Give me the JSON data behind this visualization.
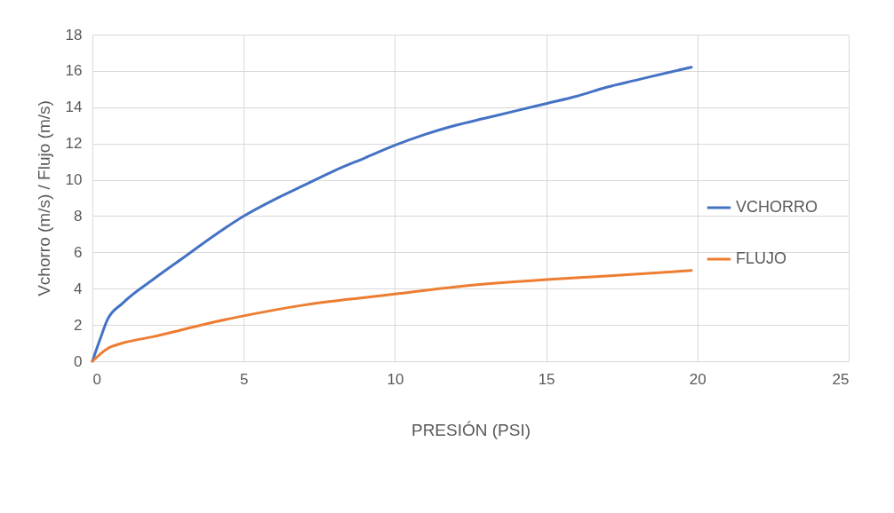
{
  "chart_data": {
    "type": "line",
    "xlabel": "PRESIÓN (PSI)",
    "ylabel": "Vchorro (m/s) / Flujo (m/s)",
    "xlim": [
      0,
      25
    ],
    "xticks": [
      0,
      5,
      10,
      15,
      20,
      25
    ],
    "ylim": [
      0,
      18
    ],
    "yticks": [
      0,
      2,
      4,
      6,
      8,
      10,
      12,
      14,
      16,
      18
    ],
    "grid": true,
    "legend": "right",
    "marker": "none",
    "line_style": "solid",
    "series": [
      {
        "name": "VCHORRO",
        "color": "#4472c4",
        "x": [
          0,
          0.25,
          0.5,
          1,
          2,
          3,
          4,
          5,
          6,
          7,
          8,
          9,
          10,
          11,
          12,
          13,
          14,
          15,
          16,
          17,
          18,
          19,
          19.8
        ],
        "values": [
          0,
          1.2,
          2.3,
          3.2,
          4.5,
          5.7,
          6.9,
          8.0,
          8.9,
          9.7,
          10.5,
          11.2,
          11.9,
          12.5,
          13.0,
          13.4,
          13.8,
          14.2,
          14.6,
          15.1,
          15.5,
          15.9,
          16.2
        ]
      },
      {
        "name": "FLUJO",
        "color": "#ed7d31",
        "x": [
          0,
          0.5,
          1,
          2,
          3,
          4,
          5,
          7,
          10,
          12,
          15,
          17,
          19.8
        ],
        "values": [
          0,
          0.7,
          1.0,
          1.35,
          1.75,
          2.15,
          2.5,
          3.1,
          3.7,
          4.1,
          4.5,
          4.7,
          5.0
        ]
      }
    ]
  }
}
